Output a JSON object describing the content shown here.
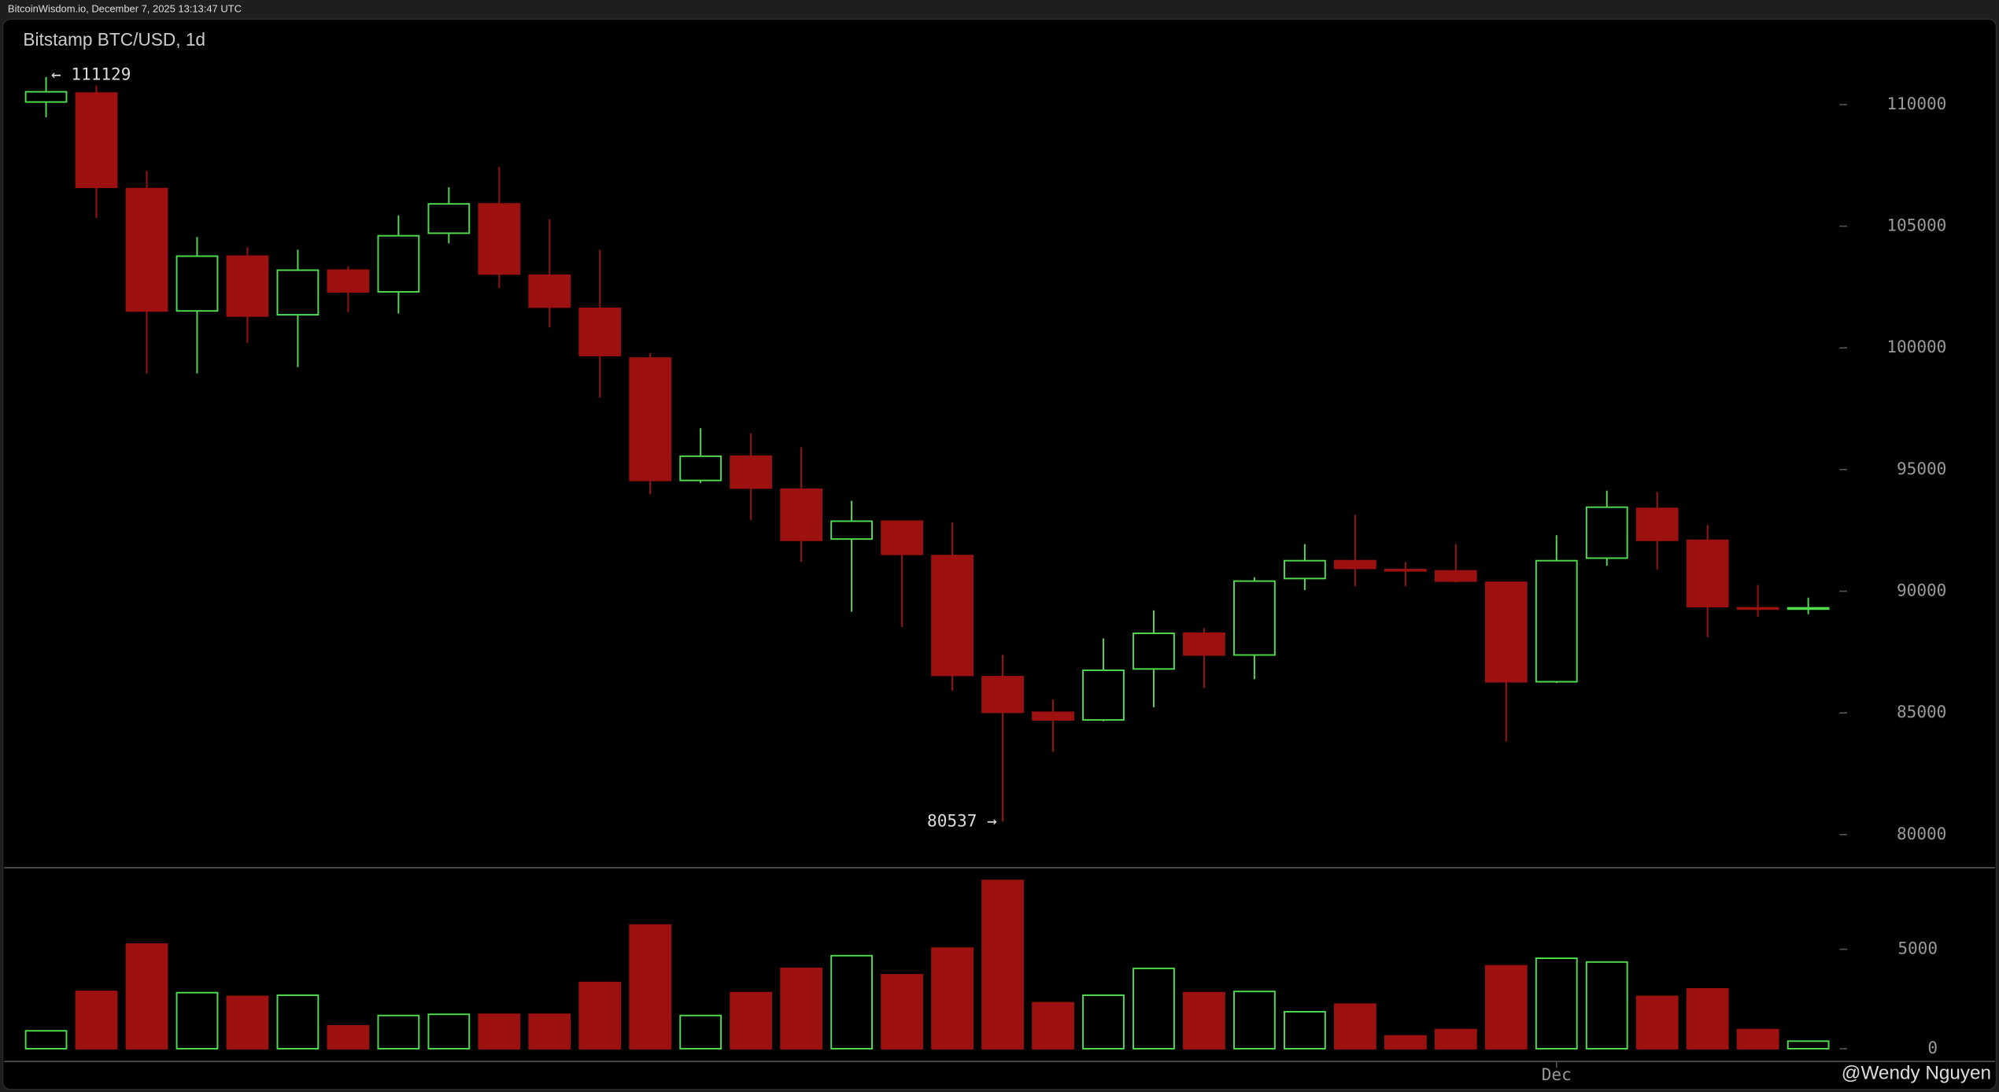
{
  "header": "BitcoinWisdom.io, December 7, 2025 13:13:47 UTC",
  "chart_data": {
    "type": "candlestick",
    "title": "Bitstamp BTC/USD, 1d",
    "annotations": [
      "← 111129",
      "80537 →"
    ],
    "watermark": "@Wendy Nguyen",
    "categories": [
      null,
      null,
      null,
      null,
      null,
      null,
      null,
      null,
      null,
      null,
      null,
      null,
      null,
      null,
      null,
      null,
      null,
      null,
      null,
      null,
      null,
      null,
      null,
      null,
      null,
      null,
      null,
      null,
      null,
      null,
      "Dec",
      null,
      null,
      null,
      null,
      null
    ],
    "open": [
      110105,
      110471,
      106544,
      101518,
      103770,
      101361,
      103193,
      102303,
      104712,
      105916,
      102984,
      101623,
      99580,
      94554,
      95549,
      94188,
      92145,
      92878,
      91465,
      86491,
      85025,
      84711,
      86805,
      88271,
      87380,
      90522,
      91255,
      90889,
      90836,
      90365,
      86281,
      91360,
      93402,
      92093,
      89318,
      89265
    ],
    "high": [
      111129,
      110785,
      107277,
      104555,
      104136,
      104031,
      103350,
      105445,
      106597,
      107434,
      105288,
      104031,
      99790,
      96701,
      96491,
      95915,
      93716,
      92878,
      92826,
      87380,
      85548,
      88061,
      89213,
      88480,
      90574,
      91936,
      93140,
      91203,
      91936,
      90365,
      92302,
      94135,
      94083,
      92721,
      90260,
      89737
    ],
    "low": [
      109476,
      105340,
      98952,
      98952,
      100209,
      99214,
      101466,
      101413,
      104293,
      102460,
      100837,
      97957,
      93978,
      94449,
      92931,
      91203,
      89161,
      88532,
      85915,
      80537,
      83401,
      84658,
      85234,
      86019,
      86386,
      90051,
      90208,
      90208,
      90365,
      83820,
      86229,
      91046,
      90889,
      88114,
      88951,
      89056
    ],
    "close": [
      110524,
      106597,
      101518,
      103770,
      101308,
      103193,
      102303,
      104607,
      105916,
      103036,
      101675,
      99685,
      94554,
      95549,
      94240,
      92093,
      92878,
      91517,
      86543,
      85025,
      84711,
      86752,
      88271,
      87380,
      90417,
      91255,
      90941,
      90836,
      90417,
      86281,
      91255,
      93454,
      92093,
      89370,
      89265,
      89318
    ],
    "volume": [
      900,
      2880,
      5260,
      2820,
      2630,
      2690,
      1150,
      1670,
      1730,
      1730,
      1730,
      3330,
      6220,
      1670,
      2820,
      4040,
      4680,
      3720,
      5060,
      8460,
      2310,
      2690,
      4040,
      2820,
      2880,
      1860,
      2240,
      640,
      960,
      4170,
      4550,
      4360,
      2630,
      3010,
      960,
      380
    ],
    "up_color": "#4fdc4f",
    "down_color": "#9e1111",
    "ylim": [
      78690,
      113510
    ],
    "yticks": [
      80000,
      85000,
      90000,
      95000,
      100000,
      105000,
      110000
    ],
    "volume_ylim": [
      -640,
      8975
    ],
    "volume_yticks": [
      0,
      5000
    ]
  }
}
